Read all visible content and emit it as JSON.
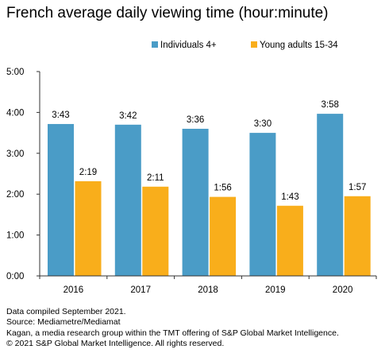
{
  "chart_data": {
    "type": "bar",
    "title": "French average daily viewing time (hour:minute)",
    "categories": [
      "2016",
      "2017",
      "2018",
      "2019",
      "2020"
    ],
    "series": [
      {
        "name": "Individuals 4+",
        "color": "#4a9cc7",
        "values": [
          223,
          222,
          216,
          210,
          238
        ],
        "labels": [
          "3:43",
          "3:42",
          "3:36",
          "3:30",
          "3:58"
        ]
      },
      {
        "name": "Young adults 15-34",
        "color": "#f9ae1b",
        "values": [
          139,
          131,
          116,
          103,
          117
        ],
        "labels": [
          "2:19",
          "2:11",
          "1:56",
          "1:43",
          "1:57"
        ]
      }
    ],
    "yticks": [
      0,
      60,
      120,
      180,
      240,
      300
    ],
    "ytick_labels": [
      "0:00",
      "1:00",
      "2:00",
      "3:00",
      "4:00",
      "5:00"
    ],
    "ylim": [
      0,
      300
    ],
    "xlabel": "",
    "ylabel": "",
    "legend": "top-center",
    "grid": false
  },
  "footer": {
    "line1": "Data compiled September 2021.",
    "line2": "Source: Mediametre/Mediamat",
    "line3": "Kagan, a media research group within the TMT offering of S&P Global Market Intelligence.",
    "line4": "© 2021 S&P Global Market Intelligence. All rights reserved."
  }
}
